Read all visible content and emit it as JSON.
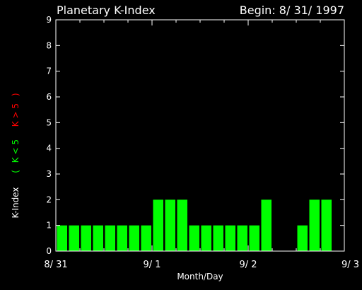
{
  "title": "Planetary K-Index",
  "begin_label": "Begin: 8/ 31/ 1997",
  "colors": {
    "background": "#000000",
    "axis": "#ffffff",
    "bar": "#00ff00",
    "k_low": "#00ff00",
    "k_high": "#ff0000"
  },
  "ylabel": {
    "main": "K-Index",
    "open_paren": "(",
    "low": "K < 5",
    "high": "K > 5",
    "close_paren": ")"
  },
  "chart_data": {
    "type": "bar",
    "title": "Planetary K-Index",
    "xlabel": "Month/Day",
    "ylabel": "K-Index",
    "ylim": [
      0,
      9
    ],
    "yticks": [
      "0",
      "1",
      "2",
      "3",
      "4",
      "5",
      "6",
      "7",
      "8",
      "9"
    ],
    "xticks": [
      "8/ 31",
      "9/ 1",
      "9/ 2",
      "9/ 3"
    ],
    "slots_per_day": 8,
    "values": [
      1,
      1,
      1,
      1,
      1,
      1,
      1,
      1,
      2,
      2,
      2,
      1,
      1,
      1,
      1,
      1,
      1,
      2,
      null,
      null,
      1,
      2,
      2,
      null
    ]
  }
}
